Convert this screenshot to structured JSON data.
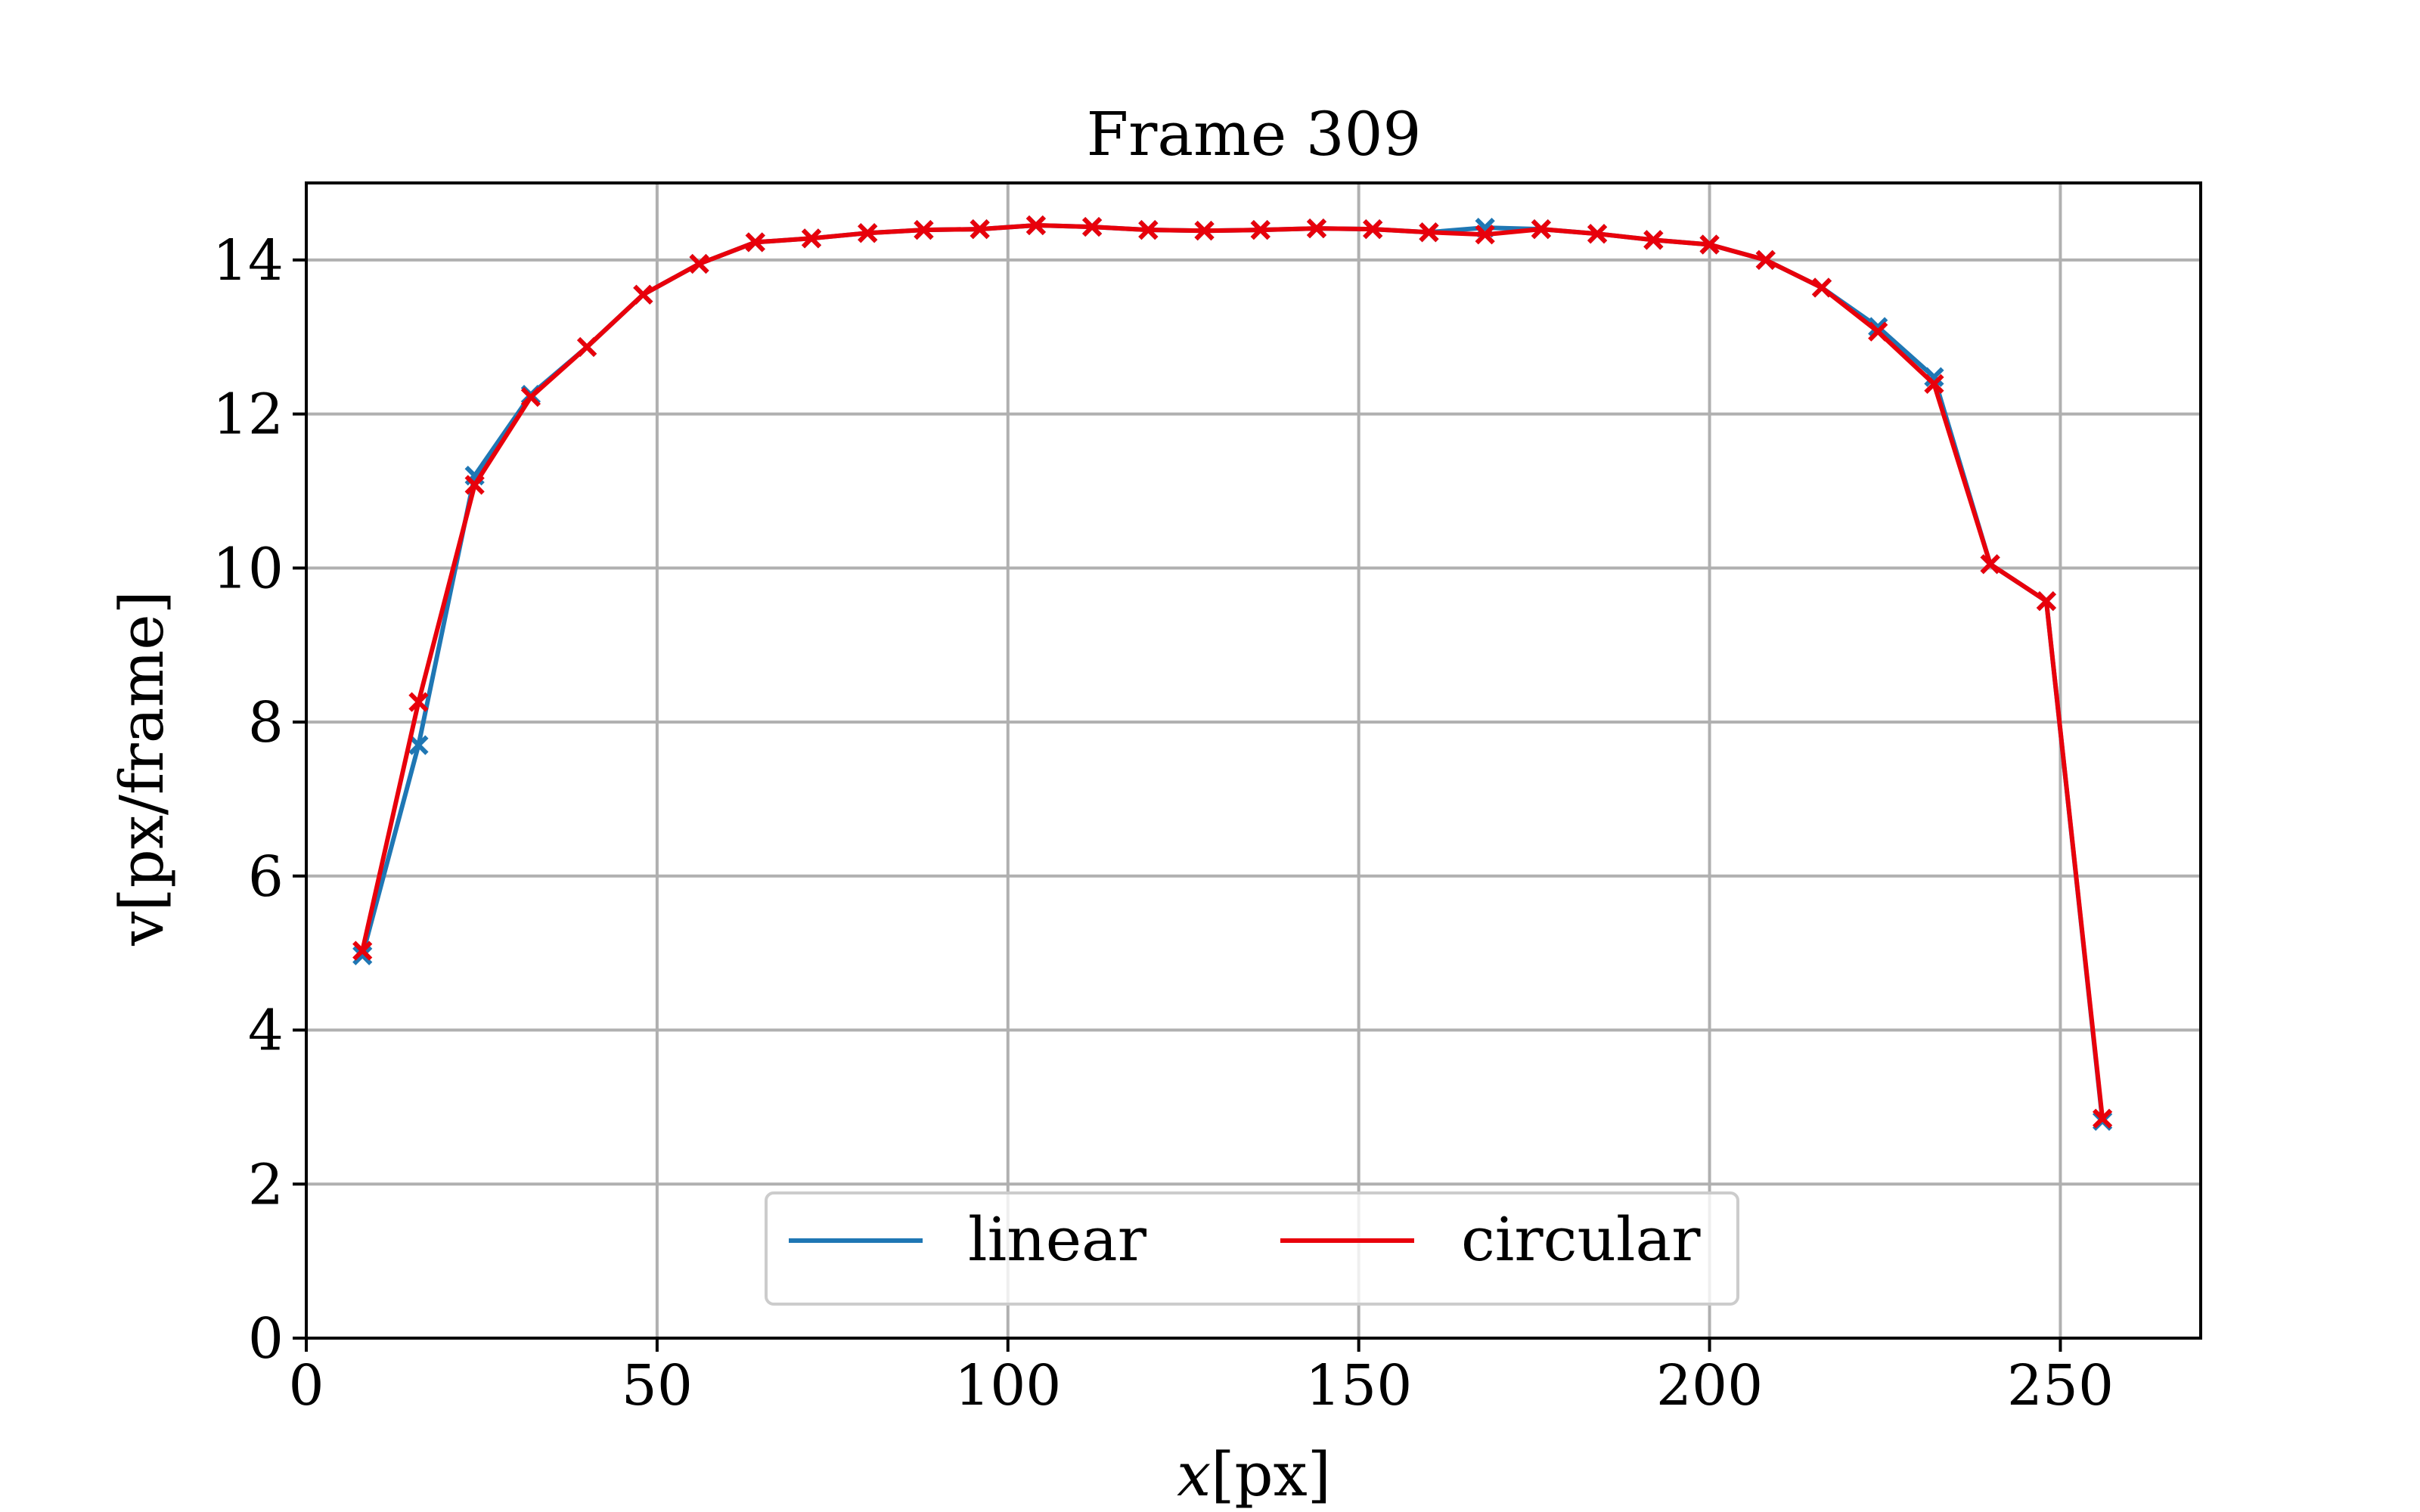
{
  "chart_data": {
    "type": "line",
    "title": "Frame 309",
    "xlabel_var": "x",
    "xlabel_unit": "[px]",
    "ylabel": "v[px/frame]",
    "xlim": [
      0,
      270
    ],
    "ylim": [
      0,
      15
    ],
    "xticks": [
      0,
      50,
      100,
      150,
      200,
      250
    ],
    "yticks": [
      0,
      2,
      4,
      6,
      8,
      10,
      12,
      14
    ],
    "grid": true,
    "legend_position": "lower-center",
    "marker": "x",
    "x": [
      8,
      16,
      24,
      32,
      40,
      48,
      56,
      64,
      72,
      80,
      88,
      96,
      104,
      112,
      120,
      128,
      136,
      144,
      152,
      160,
      168,
      176,
      184,
      192,
      200,
      208,
      216,
      224,
      232,
      240,
      248,
      256
    ],
    "series": [
      {
        "name": "linear",
        "color": "#1f77b4",
        "values": [
          4.97,
          7.7,
          11.2,
          12.25,
          12.87,
          13.55,
          13.95,
          14.23,
          14.28,
          14.35,
          14.39,
          14.4,
          14.45,
          14.43,
          14.39,
          14.38,
          14.39,
          14.41,
          14.4,
          14.36,
          14.42,
          14.4,
          14.34,
          14.26,
          14.2,
          14.0,
          13.64,
          13.13,
          12.48,
          10.05,
          9.57,
          2.82
        ]
      },
      {
        "name": "circular",
        "color": "#e8000b",
        "values": [
          5.03,
          8.26,
          11.08,
          12.22,
          12.87,
          13.55,
          13.95,
          14.23,
          14.28,
          14.35,
          14.39,
          14.4,
          14.45,
          14.43,
          14.39,
          14.38,
          14.39,
          14.41,
          14.4,
          14.36,
          14.33,
          14.4,
          14.34,
          14.26,
          14.2,
          14.0,
          13.64,
          13.07,
          12.39,
          10.05,
          9.57,
          2.85
        ]
      }
    ]
  }
}
